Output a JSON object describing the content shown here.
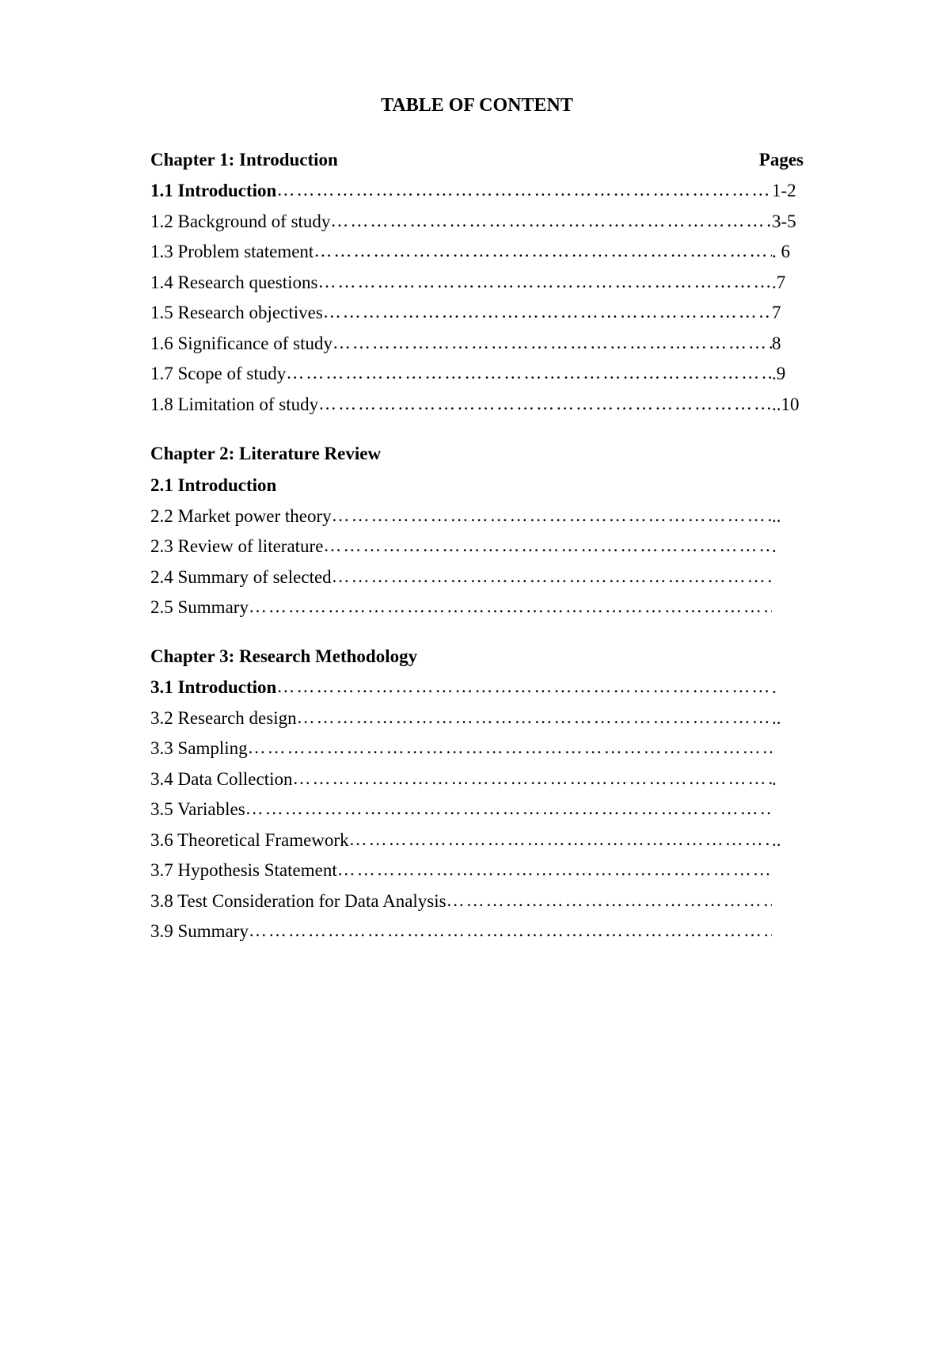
{
  "title": "TABLE OF CONTENT",
  "pages_label": "Pages",
  "chapters": [
    {
      "title": "Chapter 1: Introduction",
      "show_pages_header": true,
      "entries": [
        {
          "label": "1.1 Introduction ",
          "page": " 1-2",
          "bold": true,
          "trailing": "."
        },
        {
          "label": "1.2 Background of study",
          "page": " 3-5",
          "bold": false,
          "trailing": ""
        },
        {
          "label": "1.3 Problem statement",
          "page": ". 6",
          "bold": false,
          "trailing": "."
        },
        {
          "label": "1.4 Research questions",
          "page": ".7",
          "bold": false,
          "trailing": "."
        },
        {
          "label": "1.5 Research objectives",
          "page": "7",
          "bold": false,
          "trailing": ""
        },
        {
          "label": "1.6 Significance of study",
          "page": "8",
          "bold": false,
          "trailing": ""
        },
        {
          "label": "1.7 Scope of study ",
          "page": ".9",
          "bold": false,
          "trailing": "."
        },
        {
          "label": "1.8 Limitation of study",
          "page": "..10",
          "bold": false,
          "trailing": "."
        }
      ]
    },
    {
      "title": "Chapter 2: Literature Review",
      "show_pages_header": false,
      "sub_intro": "2.1 Introduction",
      "entries": [
        {
          "label": "2.2 Market power theory",
          "page": "..",
          "bold": false,
          "trailing": "."
        },
        {
          "label": "2.3 Review of literature ",
          "page": ".",
          "bold": false,
          "trailing": ""
        },
        {
          "label": "2.4 Summary of selected ",
          "page": "",
          "bold": false,
          "trailing": ""
        },
        {
          "label": "2.5 Summary ",
          "page": "",
          "bold": false,
          "trailing": ""
        }
      ]
    },
    {
      "title": "Chapter 3: Research Methodology",
      "show_pages_header": false,
      "entries": [
        {
          "label": "3.1 Introduction",
          "page": ".",
          "bold": true,
          "trailing": ""
        },
        {
          "label": "3.2 Research design ",
          "page": "..",
          "bold": false,
          "trailing": "."
        },
        {
          "label": "3.3 Sampling",
          "page": "",
          "bold": false,
          "trailing": ""
        },
        {
          "label": "3.4 Data Collection",
          "page": ".",
          "bold": false,
          "trailing": ""
        },
        {
          "label": "3.5 Variables ",
          "page": "",
          "bold": false,
          "trailing": ""
        },
        {
          "label": "3.6 Theoretical Framework ",
          "page": "..",
          "bold": false,
          "trailing": "."
        },
        {
          "label": "3.7 Hypothesis Statement ",
          "page": "",
          "bold": false,
          "trailing": ""
        },
        {
          "label": "3.8 Test Consideration for Data Analysis ",
          "page": "",
          "bold": false,
          "trailing": ""
        },
        {
          "label": "3.9 Summary",
          "page": "",
          "bold": false,
          "trailing": ""
        }
      ]
    }
  ],
  "colors": {
    "background": "#ffffff",
    "text": "#000000"
  },
  "fonts": {
    "family": "Times New Roman",
    "title_size_pt": 18,
    "body_size_pt": 17
  }
}
